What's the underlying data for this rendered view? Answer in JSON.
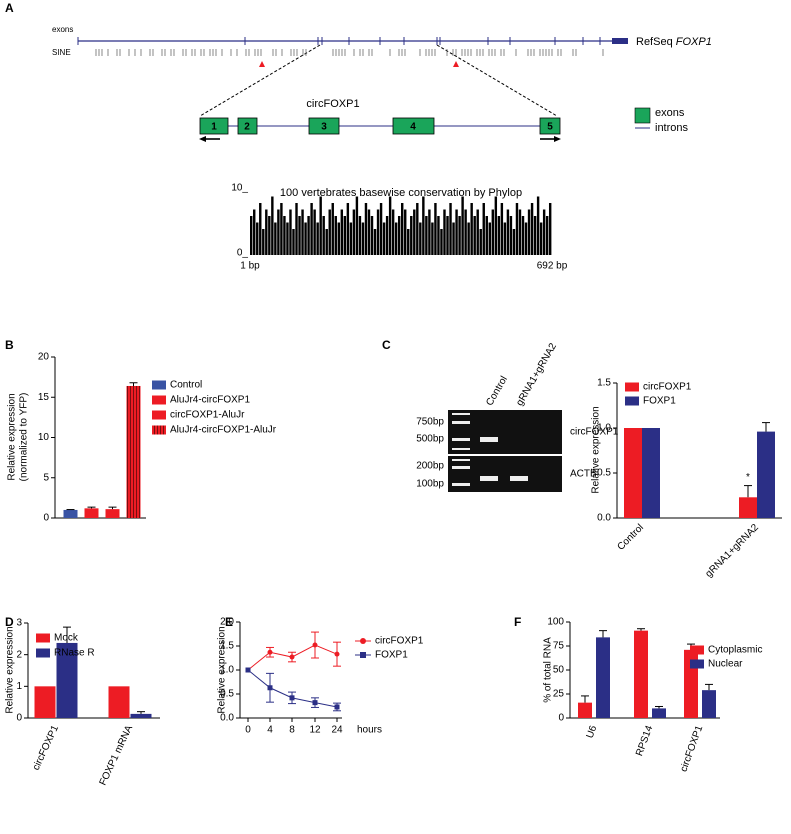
{
  "panel_labels": [
    "A",
    "B",
    "C",
    "D",
    "E",
    "F"
  ],
  "gene_track": {
    "exons_label": "exons",
    "sine_label": "SINE",
    "refseq": "RefSeq",
    "gene": "FOXP1",
    "circ_label": "circFOXP1",
    "exon_numbers": [
      "1",
      "2",
      "3",
      "4",
      "5"
    ],
    "legend": [
      "exons",
      "introns"
    ]
  },
  "gel": {
    "lanes": [
      "Control",
      "gRNA1+gRNA2"
    ],
    "markers": [
      "750bp",
      "500bp",
      "200bp",
      "100bp"
    ],
    "rows": [
      "circFOXP1",
      "ACTB"
    ]
  },
  "chart_data": [
    {
      "type": "bar",
      "title": "100 vertebrates basewise conservation by Phylop",
      "color": "#000000",
      "values": [
        6,
        7,
        5,
        8,
        4,
        7,
        6,
        9,
        5,
        7,
        8,
        6,
        5,
        7,
        4,
        8,
        6,
        7,
        5,
        6,
        8,
        7,
        5,
        9,
        6,
        4,
        7,
        8,
        6,
        5,
        7,
        6,
        8,
        5,
        7,
        9,
        6,
        5,
        8,
        7,
        6,
        4,
        7,
        8,
        5,
        6,
        9,
        7,
        5,
        6,
        8,
        7,
        4,
        6,
        7,
        8,
        5,
        9,
        6,
        7,
        5,
        8,
        6,
        4,
        7,
        6,
        8,
        5,
        7,
        6,
        9,
        7,
        5,
        8,
        6,
        7,
        4,
        8,
        6,
        5,
        7,
        9,
        6,
        8,
        5,
        7,
        6,
        4,
        8,
        7,
        6,
        5,
        7,
        8,
        6,
        9,
        5,
        7,
        6,
        8
      ],
      "xlim": [
        1,
        692
      ],
      "xticks": [
        {
          "value": 1,
          "label": "1 bp"
        },
        {
          "value": 692,
          "label": "692 bp"
        }
      ],
      "ylim": [
        0,
        10
      ],
      "yticks": [
        {
          "value": 0,
          "label": "0_"
        },
        {
          "value": 10,
          "label": "10_"
        }
      ]
    },
    {
      "type": "bar",
      "ylabel": [
        "Relative expression",
        "(normalized to YFP)"
      ],
      "categories": [
        "Control",
        "AluJr4-circFOXP1",
        "circFOXP1-AluJr",
        "AluJr4-circFOXP1-AluJr"
      ],
      "values": [
        1,
        1.2,
        1.1,
        16.4
      ],
      "errors": [
        0.05,
        0.15,
        0.25,
        0.4
      ],
      "colors": [
        "#3953a4",
        "#ed1c24",
        "#ed1c24",
        "#ed1c24"
      ],
      "hatch": [
        false,
        false,
        false,
        true
      ],
      "ylim": [
        0,
        20
      ],
      "yticks": [
        0,
        5,
        10,
        15,
        20
      ]
    },
    {
      "type": "bar",
      "ylabel": [
        "Relative expression"
      ],
      "categories": [
        "Control",
        "gRNA1+gRNA2"
      ],
      "series": [
        {
          "name": "circFOXP1",
          "color": "#ed1c24",
          "values": [
            1,
            0.23
          ],
          "errors": [
            0,
            0.13
          ]
        },
        {
          "name": "FOXP1",
          "color": "#2b2f86",
          "values": [
            1,
            0.96
          ],
          "errors": [
            0,
            0.1
          ]
        }
      ],
      "annotation": "*",
      "ylim": [
        0,
        1.5
      ],
      "yticks": [
        {
          "value": 0,
          "label": "0.0"
        },
        0.5,
        {
          "value": 1,
          "label": "1.0"
        },
        1.5
      ]
    },
    {
      "type": "bar",
      "ylabel": [
        "Relative expression"
      ],
      "categories": [
        "circFOXP1",
        "FOXP1 mRNA"
      ],
      "series": [
        {
          "name": "Mock",
          "color": "#ed1c24",
          "values": [
            1,
            1
          ],
          "errors": [
            0,
            0
          ]
        },
        {
          "name": "RNase R",
          "color": "#2b2f86",
          "values": [
            2.37,
            0.13
          ],
          "errors": [
            0.5,
            0.07
          ]
        }
      ],
      "ylim": [
        0,
        3
      ],
      "yticks": [
        0,
        1,
        2,
        3
      ]
    },
    {
      "type": "line",
      "ylabel": [
        "Relative expression"
      ],
      "xlabel": "hours",
      "categories": [
        "0",
        "4",
        "8",
        "12",
        "24"
      ],
      "series": [
        {
          "name": "circFOXP1",
          "color": "#ed1c24",
          "marker": "circle",
          "values": [
            1,
            1.37,
            1.27,
            1.52,
            1.33
          ],
          "errors": [
            0,
            0.1,
            0.1,
            0.27,
            0.25
          ]
        },
        {
          "name": "FOXP1",
          "color": "#2b2f86",
          "marker": "square",
          "values": [
            1,
            0.63,
            0.42,
            0.32,
            0.23
          ],
          "errors": [
            0,
            0.3,
            0.12,
            0.1,
            0.08
          ]
        }
      ],
      "ylim": [
        0,
        2
      ],
      "yticks": [
        {
          "value": 0,
          "label": "0.0"
        },
        0.5,
        {
          "value": 1,
          "label": "1.0"
        },
        1.5,
        {
          "value": 2,
          "label": "2.0"
        }
      ]
    },
    {
      "type": "bar",
      "ylabel": [
        "% of total RNA"
      ],
      "categories": [
        "U6",
        "RPS14",
        "circFOXP1"
      ],
      "series": [
        {
          "name": "Cytoplasmic",
          "color": "#ed1c24",
          "values": [
            16,
            91,
            71
          ],
          "errors": [
            7,
            2,
            6
          ]
        },
        {
          "name": "Nuclear",
          "color": "#2b2f86",
          "values": [
            84,
            10,
            29
          ],
          "errors": [
            7,
            2,
            6
          ]
        }
      ],
      "ylim": [
        0,
        100
      ],
      "yticks": [
        0,
        25,
        50,
        75,
        100
      ]
    }
  ]
}
